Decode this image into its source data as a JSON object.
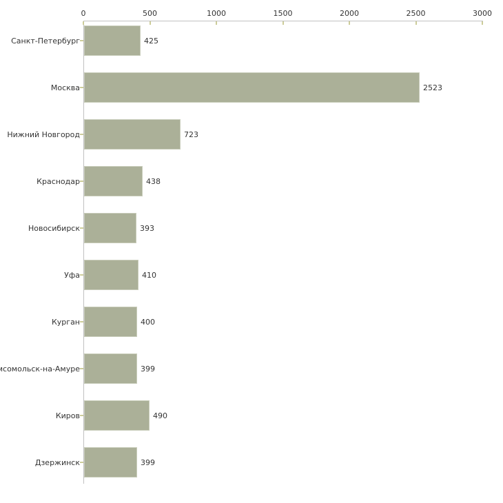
{
  "chart_data": {
    "type": "bar",
    "orientation": "horizontal",
    "title": "",
    "xlabel": "",
    "ylabel": "",
    "grid": false,
    "legend": false,
    "categories": [
      "Санкт-Петербург",
      "Москва",
      "Нижний Новгород",
      "Краснодар",
      "Новосибирск",
      "Уфа",
      "Курган",
      "Комсомольск-на-Амуре",
      "Киров",
      "Дзержинск"
    ],
    "values": [
      425,
      2523,
      723,
      438,
      393,
      410,
      400,
      399,
      490,
      399
    ],
    "value_labels": [
      "425",
      "2523",
      "723",
      "438",
      "393",
      "410",
      "400",
      "399",
      "490",
      "399"
    ],
    "x_ticks": [
      0,
      500,
      1000,
      1500,
      2000,
      2500,
      3000
    ],
    "x_tick_labels": [
      "0",
      "500",
      "1000",
      "1500",
      "2000",
      "2500",
      "3000"
    ],
    "xlim": [
      0,
      3000
    ],
    "colors": {
      "bar_fill": "#abb098",
      "bar_border": "#c9cdbb",
      "axis_line": "#c0c0c0",
      "tick_mark": "#cccc99",
      "text": "#333333",
      "background": "#ffffff"
    }
  }
}
